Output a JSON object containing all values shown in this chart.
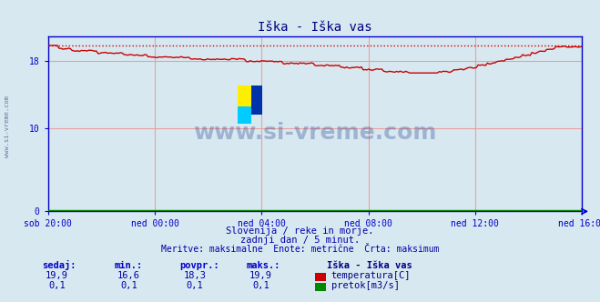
{
  "title": "Iška - Iška vas",
  "bg_color": "#d8e8f0",
  "plot_bg_color": "#d8e8f0",
  "grid_color": "#e8a0a0",
  "axis_color": "#0000cc",
  "title_color": "#000080",
  "text_color": "#0000aa",
  "temp_color": "#cc0000",
  "flow_color": "#008800",
  "max_line_color": "#cc0000",
  "x_labels": [
    "sob 20:00",
    "ned 00:00",
    "ned 04:00",
    "ned 08:00",
    "ned 12:00",
    "ned 16:00"
  ],
  "x_ticks_pos": [
    0,
    48,
    96,
    144,
    192,
    240
  ],
  "n_points": 289,
  "ylim": [
    0,
    21
  ],
  "yticks": [
    0,
    10,
    18
  ],
  "max_temp": 19.9,
  "min_temp": 16.6,
  "avg_temp": 18.3,
  "cur_temp": 19.9,
  "max_flow": 0.1,
  "min_flow": 0.1,
  "avg_flow": 0.1,
  "cur_flow": 0.1,
  "subtitle1": "Slovenija / reke in morje.",
  "subtitle2": "zadnji dan / 5 minut.",
  "subtitle3": "Meritve: maksimalne  Enote: metrične  Črta: maksimum",
  "legend_station": "Iška - Iška vas",
  "legend_temp": "temperatura[C]",
  "legend_flow": "pretok[m3/s]",
  "table_headers": [
    "sedaj:",
    "min.:",
    "povpr.:",
    "maks.:"
  ],
  "table_temp": [
    "19,9",
    "16,6",
    "18,3",
    "19,9"
  ],
  "table_flow": [
    "0,1",
    "0,1",
    "0,1",
    "0,1"
  ]
}
